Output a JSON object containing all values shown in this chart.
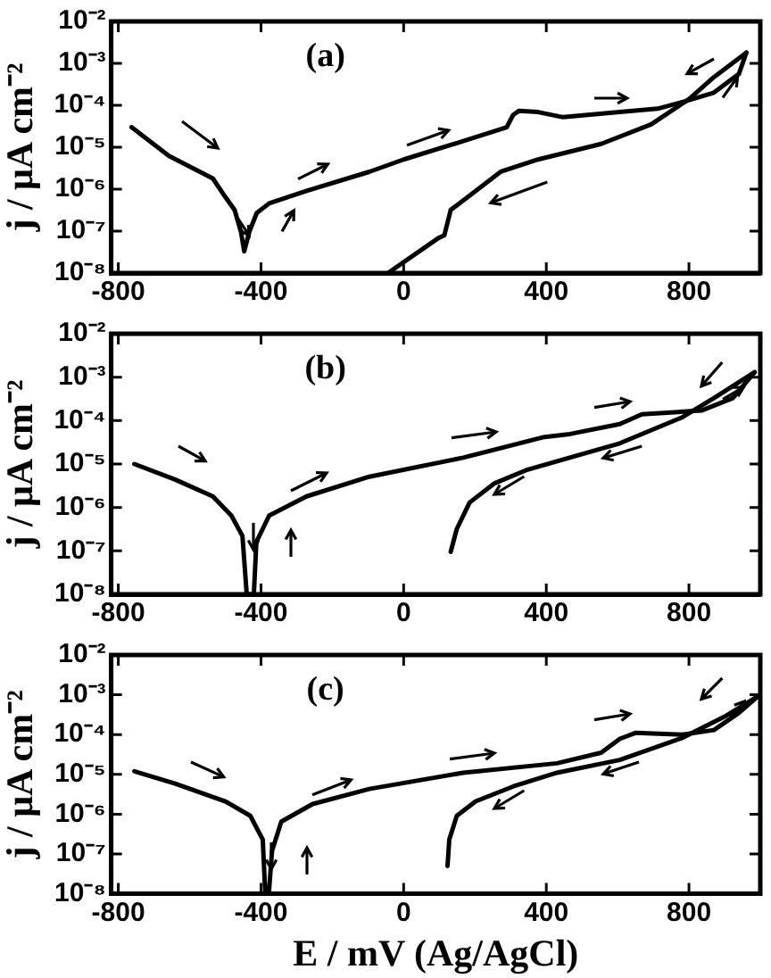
{
  "chart_data": [
    {
      "type": "line",
      "ylabel": "j / μA cm⁻²",
      "annotations": [
        "(a)"
      ],
      "log": "y",
      "marker": "none",
      "line_style": "solid",
      "grid": false,
      "legend": false,
      "xlim": [
        -820,
        1000
      ],
      "xticks": [
        -800,
        -400,
        0,
        400,
        800
      ],
      "ylim": [
        1e-08,
        0.01
      ],
      "yticks": [
        {
          "value": 1e-08,
          "label": "10⁻⁸"
        },
        {
          "value": 1e-07,
          "label": "10⁻⁷"
        },
        {
          "value": 1e-06,
          "label": "10⁻⁶"
        },
        {
          "value": 1e-05,
          "label": "10⁻⁵"
        },
        {
          "value": 0.0001,
          "label": "10⁻⁴"
        },
        {
          "value": 0.001,
          "label": "10⁻³"
        },
        {
          "value": 0.01,
          "label": "10⁻²"
        }
      ],
      "series": [
        {
          "color": "#000000",
          "x": [
            -763,
            -658,
            -535,
            -500,
            -474,
            -456,
            -447,
            -433,
            -412,
            -377,
            -272,
            -96,
            0,
            167,
            289,
            307,
            324,
            377,
            447,
            606,
            712,
            782,
            870,
            940,
            961
          ],
          "values": [
            3e-05,
            6.2e-06,
            1.8e-06,
            6.5e-07,
            3.2e-07,
            9.5e-08,
            3.3e-08,
            9.5e-08,
            2.7e-07,
            4.6e-07,
            9.1e-07,
            2.6e-06,
            5.1e-06,
            1.4e-05,
            3e-05,
            5.9e-05,
            7.4e-05,
            6.9e-05,
            5.2e-05,
            6.9e-05,
            8.3e-05,
            0.00012,
            0.0002,
            0.00056,
            0.0018
          ]
        },
        {
          "color": "#000000",
          "x": [
            961,
            870,
            800,
            694,
            554,
            377,
            272,
            202,
            132,
            114,
            97,
            -44
          ],
          "values": [
            0.0018,
            0.00047,
            0.00014,
            3.5e-05,
            1.2e-05,
            5.1e-06,
            2.6e-06,
            9.1e-07,
            3.2e-07,
            7.9e-08,
            6.8e-08,
            1e-08
          ]
        }
      ]
    },
    {
      "type": "line",
      "ylabel": "j / μA cm⁻²",
      "annotations": [
        "(b)"
      ],
      "log": "y",
      "marker": "none",
      "line_style": "solid",
      "grid": false,
      "legend": false,
      "xlim": [
        -820,
        1000
      ],
      "xticks": [
        -800,
        -400,
        0,
        400,
        800
      ],
      "ylim": [
        1e-08,
        0.01
      ],
      "yticks": [
        {
          "value": 1e-08,
          "label": "10⁻⁸"
        },
        {
          "value": 1e-07,
          "label": "10⁻⁷"
        },
        {
          "value": 1e-06,
          "label": "10⁻⁶"
        },
        {
          "value": 1e-05,
          "label": "10⁻⁵"
        },
        {
          "value": 0.0001,
          "label": "10⁻⁴"
        },
        {
          "value": 0.001,
          "label": "10⁻³"
        },
        {
          "value": 0.01,
          "label": "10⁻²"
        }
      ],
      "series": [
        {
          "color": "#000000",
          "x": [
            -755,
            -641,
            -535,
            -483,
            -452,
            -440,
            -420,
            -413,
            -377,
            -272,
            -96,
            167,
            395,
            466,
            606,
            668,
            835,
            923,
            984
          ],
          "values": [
            1e-05,
            4.4e-06,
            1.8e-06,
            6.5e-07,
            2.2e-07,
            1e-08,
            1e-08,
            1.6e-07,
            6.5e-07,
            1.8e-06,
            5.1e-06,
            1.4e-05,
            4.2e-05,
            4.9e-05,
            8.3e-05,
            0.00014,
            0.00017,
            0.00033,
            0.0013
          ]
        },
        {
          "color": "#000000",
          "x": [
            984,
            870,
            782,
            606,
            343,
            255,
            185,
            149,
            132
          ],
          "values": [
            0.0013,
            0.00033,
            0.00012,
            3e-05,
            7.2e-06,
            3.6e-06,
            1.3e-06,
            3.2e-07,
            9.5e-08
          ]
        }
      ]
    },
    {
      "type": "line",
      "xlabel": "E / mV (Ag/AgCl)",
      "ylabel": "j / μA cm⁻²",
      "annotations": [
        "(c)"
      ],
      "log": "y",
      "marker": "none",
      "line_style": "solid",
      "grid": false,
      "legend": false,
      "xlim": [
        -820,
        1000
      ],
      "xticks": [
        -800,
        -400,
        0,
        400,
        800
      ],
      "ylim": [
        1e-08,
        0.01
      ],
      "yticks": [
        {
          "value": 1e-08,
          "label": "10⁻⁸"
        },
        {
          "value": 1e-07,
          "label": "10⁻⁷"
        },
        {
          "value": 1e-06,
          "label": "10⁻⁶"
        },
        {
          "value": 1e-05,
          "label": "10⁻⁵"
        },
        {
          "value": 0.0001,
          "label": "10⁻⁴"
        },
        {
          "value": 0.001,
          "label": "10⁻³"
        },
        {
          "value": 0.01,
          "label": "10⁻²"
        }
      ],
      "series": [
        {
          "color": "#000000",
          "x": [
            -755,
            -641,
            -500,
            -430,
            -395,
            -388,
            -378,
            -369,
            -343,
            -255,
            -96,
            167,
            430,
            554,
            606,
            650,
            782,
            870,
            940,
            993
          ],
          "values": [
            1.2e-05,
            5.9e-06,
            2.1e-06,
            9.1e-07,
            2.3e-07,
            1e-08,
            1e-08,
            1.2e-07,
            6.5e-07,
            1.8e-06,
            4.3e-06,
            1.1e-05,
            1.9e-05,
            3.5e-05,
            7.8e-05,
            0.00011,
            0.0001,
            0.00013,
            0.00035,
            0.00091
          ]
        },
        {
          "color": "#000000",
          "x": [
            993,
            905,
            782,
            606,
            430,
            308,
            202,
            149,
            128,
            123
          ],
          "values": [
            0.00091,
            0.0003,
            8.3e-05,
            2.3e-05,
            1.1e-05,
            5e-06,
            2.1e-06,
            9.1e-07,
            2.3e-07,
            5e-08
          ]
        }
      ]
    }
  ]
}
